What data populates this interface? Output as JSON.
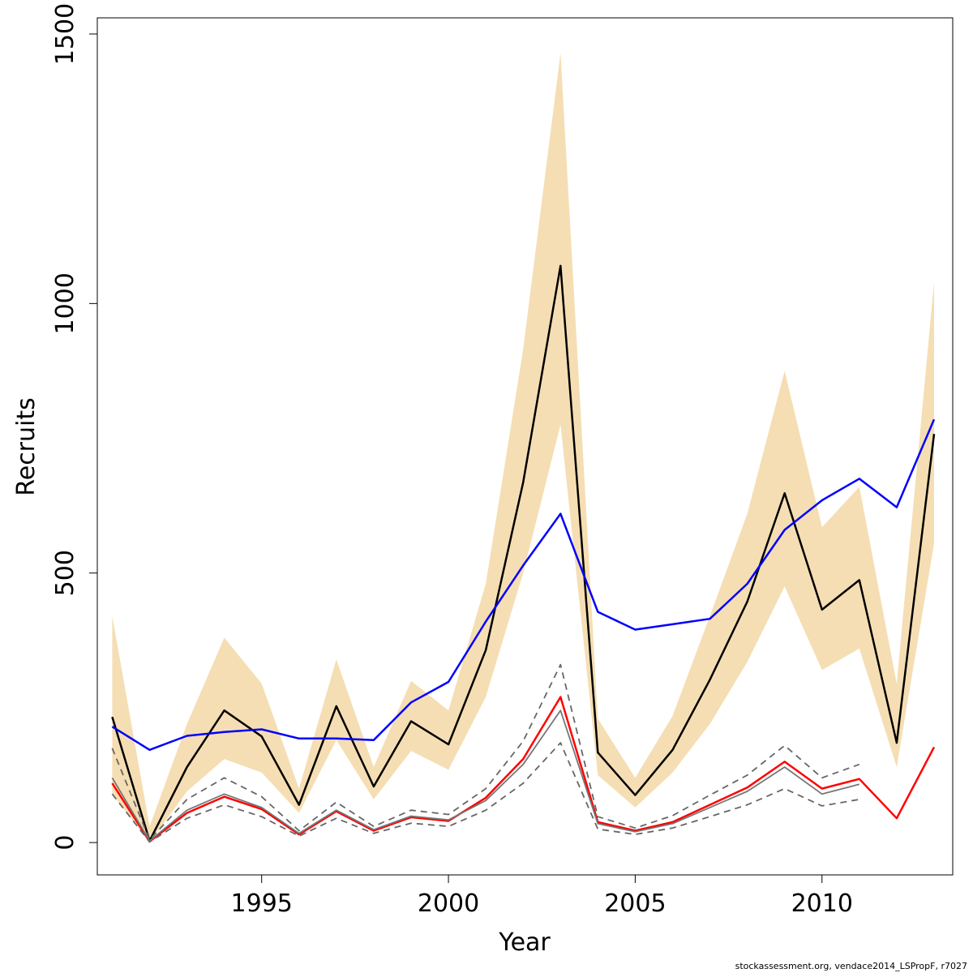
{
  "chart_data": {
    "type": "line",
    "xlabel": "Year",
    "ylabel": "Recruits",
    "xlim": [
      1990.6,
      2013.5
    ],
    "ylim": [
      -60,
      1530
    ],
    "x_ticks": [
      1995,
      2000,
      2005,
      2010
    ],
    "y_ticks": [
      0,
      500,
      1000,
      1500
    ],
    "grid": false,
    "legend": "none",
    "x": [
      1991,
      1992,
      1993,
      1994,
      1995,
      1996,
      1997,
      1998,
      1999,
      2000,
      2001,
      2002,
      2003,
      2004,
      2005,
      2006,
      2007,
      2008,
      2009,
      2010,
      2011,
      2012,
      2013
    ],
    "band": {
      "color": "#f5deb3",
      "upper": [
        420,
        30,
        220,
        380,
        295,
        100,
        340,
        140,
        300,
        245,
        480,
        915,
        1465,
        230,
        120,
        235,
        420,
        610,
        875,
        585,
        660,
        295,
        1040
      ],
      "lower": [
        90,
        0,
        95,
        155,
        130,
        55,
        190,
        80,
        170,
        135,
        270,
        500,
        775,
        125,
        65,
        130,
        220,
        335,
        475,
        320,
        360,
        140,
        555
      ]
    },
    "series": [
      {
        "color": "#000000",
        "style": "solid",
        "width": 2.5,
        "values": [
          233,
          3,
          140,
          245,
          197,
          70,
          253,
          104,
          225,
          182,
          357,
          668,
          1070,
          167,
          88,
          172,
          302,
          447,
          648,
          432,
          487,
          185,
          758
        ]
      },
      {
        "color": "#0000ff",
        "style": "solid",
        "width": 2.5,
        "values": [
          215,
          172,
          198,
          205,
          210,
          193,
          193,
          190,
          260,
          298,
          410,
          514,
          610,
          428,
          395,
          405,
          415,
          480,
          580,
          635,
          675,
          622,
          785
        ]
      },
      {
        "color": "#ff0000",
        "style": "solid",
        "width": 2.5,
        "values": [
          110,
          2,
          55,
          85,
          62,
          15,
          58,
          22,
          47,
          40,
          83,
          155,
          270,
          38,
          22,
          38,
          70,
          102,
          150,
          100,
          118,
          45,
          177
        ]
      },
      {
        "color": "#777777",
        "style": "solid",
        "width": 1.8,
        "values": [
          120,
          3,
          60,
          90,
          65,
          17,
          60,
          24,
          49,
          42,
          78,
          145,
          245,
          35,
          20,
          35,
          65,
          95,
          140,
          90,
          108,
          null,
          null
        ]
      },
      {
        "color": "#666666",
        "style": "dashed",
        "width": 1.8,
        "values": [
          175,
          5,
          80,
          120,
          85,
          22,
          75,
          30,
          60,
          52,
          100,
          188,
          330,
          48,
          27,
          50,
          88,
          125,
          180,
          120,
          145,
          null,
          null
        ]
      },
      {
        "color": "#666666",
        "style": "dashed",
        "width": 1.8,
        "values": [
          90,
          1,
          45,
          70,
          48,
          12,
          45,
          17,
          36,
          30,
          60,
          110,
          185,
          25,
          15,
          27,
          48,
          70,
          100,
          68,
          80,
          null,
          null
        ]
      }
    ]
  },
  "footer": "stockassessment.org, vendace2014_LSPropF, r7027"
}
